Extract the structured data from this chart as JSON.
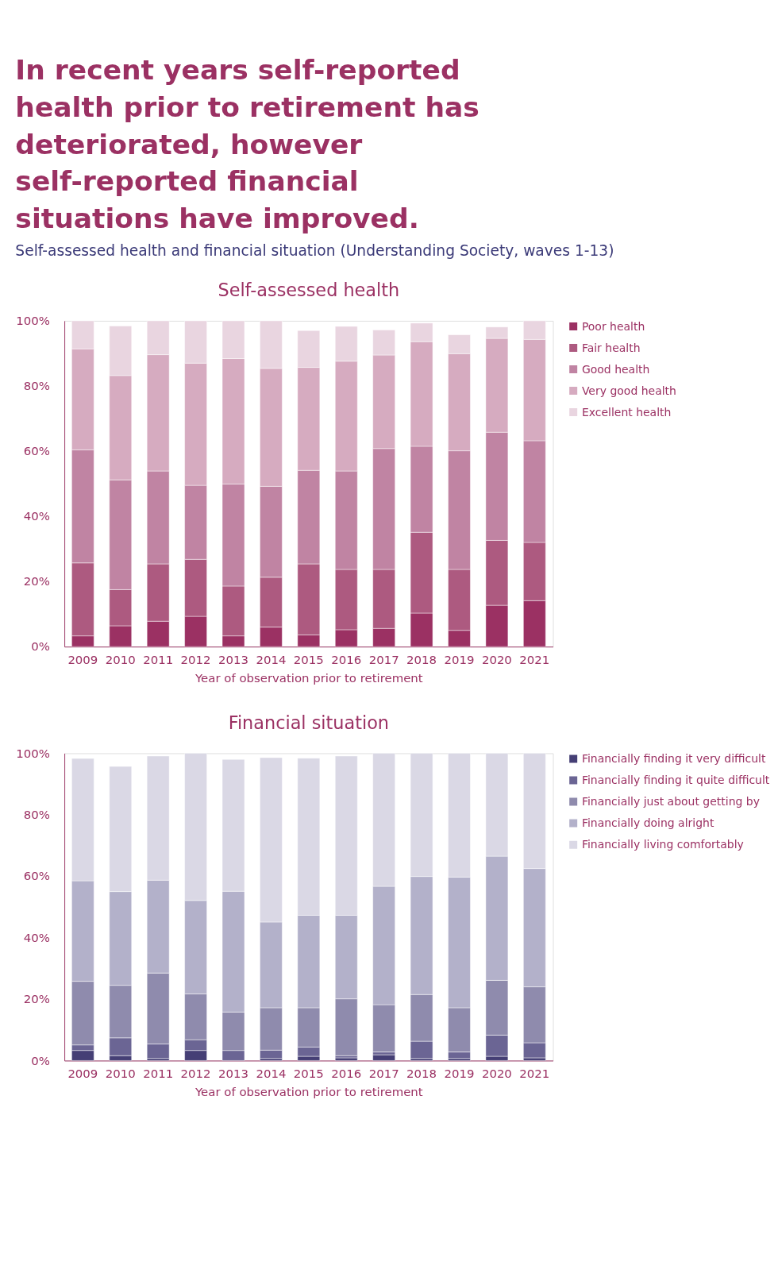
{
  "chart_data": [
    {
      "type": "bar",
      "stacked": true,
      "title": "Self-assessed health",
      "xlabel": "Year of observation prior to retirement",
      "legend": "right",
      "grid": false,
      "annotations": [
        "In recent years self-reported health prior to retirement has deteriorated, however self-reported financial situations have improved.",
        "Self-assessed health and financial situation (Understanding Society, waves 1-13)"
      ],
      "categories": [
        "2009",
        "2010",
        "2011",
        "2012",
        "2013",
        "2014",
        "2015",
        "2016",
        "2017",
        "2018",
        "2019",
        "2020",
        "2021"
      ],
      "ylim": [
        0,
        100
      ],
      "yticks": [
        {
          "value": 0,
          "label": "0%"
        },
        {
          "value": 20,
          "label": "20%"
        },
        {
          "value": 40,
          "label": "40%"
        },
        {
          "value": 60,
          "label": "60%"
        },
        {
          "value": 80,
          "label": "80%"
        },
        {
          "value": 100,
          "label": "100%"
        }
      ],
      "series": [
        {
          "name": "Poor health",
          "color": "#9b3163",
          "values": [
            3.3,
            6.4,
            7.8,
            9.3,
            3.3,
            6.0,
            3.6,
            5.2,
            5.6,
            10.3,
            5.0,
            12.7,
            14.1
          ]
        },
        {
          "name": "Fair health",
          "color": "#ad5a80",
          "values": [
            22.4,
            11.1,
            17.6,
            17.5,
            15.3,
            15.3,
            21.8,
            18.5,
            18.1,
            24.8,
            18.7,
            19.9,
            17.9
          ]
        },
        {
          "name": "Good health",
          "color": "#c084a3",
          "values": [
            34.7,
            33.7,
            28.5,
            22.7,
            31.3,
            27.9,
            28.7,
            30.2,
            37.1,
            26.4,
            36.4,
            33.2,
            31.2
          ]
        },
        {
          "name": "Very good health",
          "color": "#d6abc0",
          "values": [
            31.0,
            32.0,
            35.7,
            37.5,
            38.5,
            36.2,
            31.6,
            33.7,
            28.7,
            32.1,
            29.8,
            28.8,
            31.1
          ]
        },
        {
          "name": "Excellent health",
          "color": "#e9d5e0",
          "values": [
            8.6,
            15.2,
            10.4,
            13.0,
            11.6,
            14.6,
            11.3,
            10.7,
            7.7,
            5.7,
            5.8,
            3.5,
            5.7
          ]
        }
      ]
    },
    {
      "type": "bar",
      "stacked": true,
      "title": "Financial situation",
      "xlabel": "Year of observation prior to retirement",
      "legend": "right",
      "grid": false,
      "categories": [
        "2009",
        "2010",
        "2011",
        "2012",
        "2013",
        "2014",
        "2015",
        "2016",
        "2017",
        "2018",
        "2019",
        "2020",
        "2021"
      ],
      "ylim": [
        0,
        100
      ],
      "yticks": [
        {
          "value": 0,
          "label": "0%"
        },
        {
          "value": 20,
          "label": "20%"
        },
        {
          "value": 40,
          "label": "40%"
        },
        {
          "value": 60,
          "label": "60%"
        },
        {
          "value": 80,
          "label": "80%"
        },
        {
          "value": 100,
          "label": "100%"
        }
      ],
      "series": [
        {
          "name": "Financially finding it very difficult",
          "color": "#453f75",
          "values": [
            3.3,
            1.6,
            0.7,
            3.3,
            null,
            0.7,
            1.4,
            0.9,
            1.9,
            0.7,
            0.7,
            1.4,
            0.9
          ]
        },
        {
          "name": "Financially finding it quite difficult",
          "color": "#6b6594",
          "values": [
            1.8,
            5.8,
            4.7,
            3.5,
            3.3,
            2.7,
            3.0,
            0.7,
            0.9,
            5.6,
            2.1,
            6.9,
            4.9
          ]
        },
        {
          "name": "Financially just about getting by",
          "color": "#8f8bad",
          "values": [
            20.7,
            17.1,
            23.1,
            14.9,
            12.5,
            13.8,
            12.8,
            18.5,
            15.4,
            15.2,
            14.4,
            17.8,
            18.2
          ]
        },
        {
          "name": "Financially doing alright",
          "color": "#b3b1ca",
          "values": [
            32.7,
            30.5,
            30.2,
            30.4,
            39.3,
            27.9,
            30.1,
            27.2,
            38.5,
            38.4,
            42.5,
            40.4,
            38.5
          ]
        },
        {
          "name": "Financially living comfortably",
          "color": "#dad8e5",
          "values": [
            39.8,
            40.7,
            40.4,
            47.9,
            42.9,
            53.5,
            51.1,
            51.8,
            43.3,
            40.1,
            40.3,
            33.5,
            37.5
          ]
        }
      ]
    }
  ]
}
